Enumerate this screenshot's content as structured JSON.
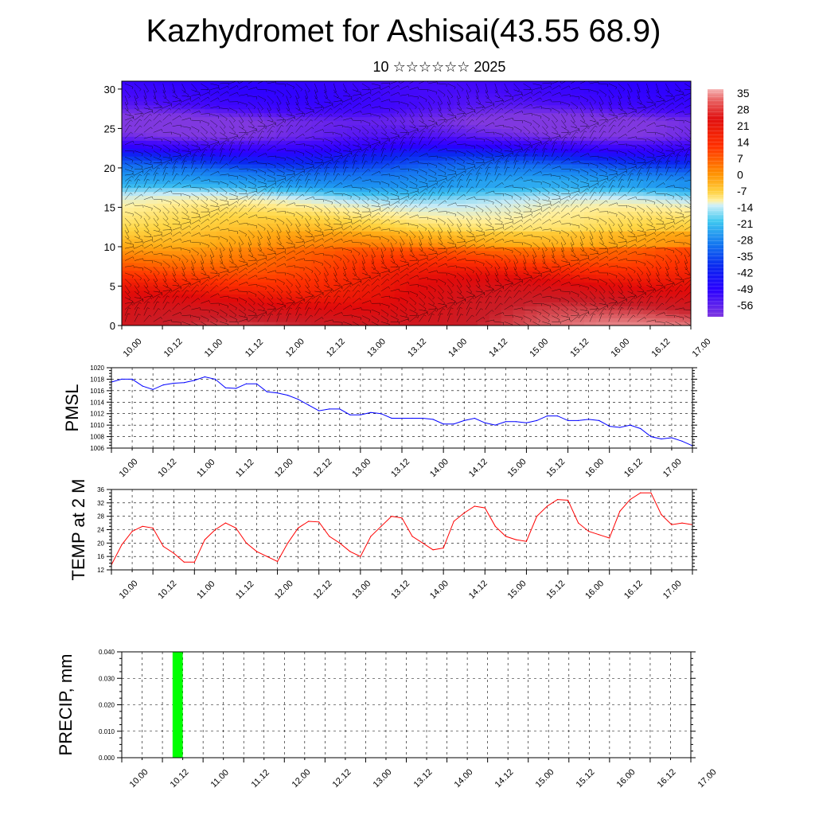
{
  "title": "Kazhydromet for Ashisai(43.55 68.9)",
  "subtitle": "10 ☆☆☆☆☆☆ 2025",
  "time_labels": [
    "10.00",
    "10.12",
    "11.00",
    "11.12",
    "12.00",
    "12.12",
    "13.00",
    "13.12",
    "14.00",
    "14.12",
    "15.00",
    "15.12",
    "16.00",
    "16.12",
    "17.00"
  ],
  "chart_data": [
    {
      "type": "heatmap",
      "description_fields": "vertical cross-section of temperature with wind barbs",
      "xlabel": "",
      "ylabel": "",
      "yticks": [
        0,
        5,
        10,
        15,
        20,
        25,
        30
      ],
      "ylim": [
        0,
        31
      ],
      "colorbar": {
        "labels": [
          "35",
          "28",
          "21",
          "14",
          "7",
          "0",
          "-7",
          "-14",
          "-21",
          "-28",
          "-35",
          "-42",
          "-49",
          "-56"
        ],
        "range": [
          -63,
          42
        ]
      },
      "profile": {
        "levels": [
          0,
          3,
          6,
          9,
          11,
          13,
          15,
          16,
          17,
          18,
          20,
          22,
          24,
          26,
          28,
          31
        ],
        "temps": [
          30,
          24,
          18,
          10,
          4,
          -2,
          -8,
          -12,
          -18,
          -26,
          -36,
          -46,
          -60,
          -63,
          -55,
          -52
        ]
      },
      "grid": false
    },
    {
      "type": "line",
      "ylabel": "PMSL",
      "ylim": [
        1006,
        1020
      ],
      "yticks": [
        1006,
        1008,
        1010,
        1012,
        1014,
        1016,
        1018,
        1020
      ],
      "color": "#0000ff",
      "x": [
        0,
        3,
        6,
        9,
        12,
        15,
        18,
        21,
        24,
        27,
        30,
        33,
        36,
        39,
        42,
        45,
        48,
        51,
        54,
        57,
        60,
        63,
        66,
        69,
        72,
        75,
        78,
        81,
        84,
        87,
        90,
        93,
        96,
        99,
        102,
        105,
        108,
        111,
        114,
        117,
        120,
        123,
        126,
        129,
        132,
        135,
        138,
        141,
        144,
        147,
        150,
        153,
        156,
        159,
        162,
        165,
        168
      ],
      "values": [
        1017.5,
        1018,
        1018,
        1016.8,
        1016.2,
        1017,
        1017.3,
        1017.4,
        1017.8,
        1018.4,
        1018,
        1016.5,
        1016.4,
        1017.2,
        1017.2,
        1015.8,
        1015.6,
        1015.2,
        1014.5,
        1013.5,
        1012.5,
        1012.8,
        1012.8,
        1011.8,
        1011.8,
        1012.2,
        1012,
        1011.2,
        1011.2,
        1011.2,
        1011.2,
        1011,
        1010.2,
        1010.2,
        1010.8,
        1011.2,
        1010.4,
        1010,
        1010.6,
        1010.6,
        1010.4,
        1010.8,
        1011.6,
        1011.6,
        1010.8,
        1010.8,
        1011,
        1010.8,
        1009.8,
        1009.6,
        1010,
        1009.4,
        1008,
        1007.6,
        1007.8,
        1007.2,
        1006.4
      ],
      "grid": true
    },
    {
      "type": "line",
      "ylabel": "TEMP at 2 M",
      "ylim": [
        12,
        36
      ],
      "yticks": [
        12,
        16,
        20,
        24,
        28,
        32,
        36
      ],
      "color": "#ff0000",
      "x": [
        0,
        3,
        6,
        9,
        12,
        15,
        18,
        21,
        24,
        27,
        30,
        33,
        36,
        39,
        42,
        45,
        48,
        51,
        54,
        57,
        60,
        63,
        66,
        69,
        72,
        75,
        78,
        81,
        84,
        87,
        90,
        93,
        96,
        99,
        102,
        105,
        108,
        111,
        114,
        117,
        120,
        123,
        126,
        129,
        132,
        135,
        138,
        141,
        144,
        147,
        150,
        153,
        156,
        159,
        162,
        165,
        168
      ],
      "values": [
        13.5,
        19.5,
        23.5,
        25,
        24.5,
        19,
        17,
        14.3,
        14.3,
        21,
        24,
        26,
        24.5,
        20,
        17.5,
        16,
        14.5,
        20,
        24.5,
        26.5,
        26.3,
        22,
        20,
        17.5,
        16,
        22,
        25,
        28,
        27.5,
        22,
        20,
        18,
        18.5,
        26.5,
        29,
        31,
        30.5,
        25,
        22,
        21,
        20.5,
        28,
        31,
        33,
        32.8,
        26,
        23.5,
        22.5,
        21.5,
        29.5,
        33,
        35,
        35,
        28.5,
        25.5,
        26,
        25.5
      ],
      "grid": true
    },
    {
      "type": "bar",
      "ylabel": "PRECIP, mm",
      "ylim": [
        0,
        0.04
      ],
      "yticks": [
        "0.000",
        "0.010",
        "0.020",
        "0.030",
        "0.040"
      ],
      "color": "#00ff00",
      "bars": [
        {
          "x_from": 15,
          "x_to": 18,
          "value": 0.04
        }
      ],
      "grid": true
    }
  ]
}
